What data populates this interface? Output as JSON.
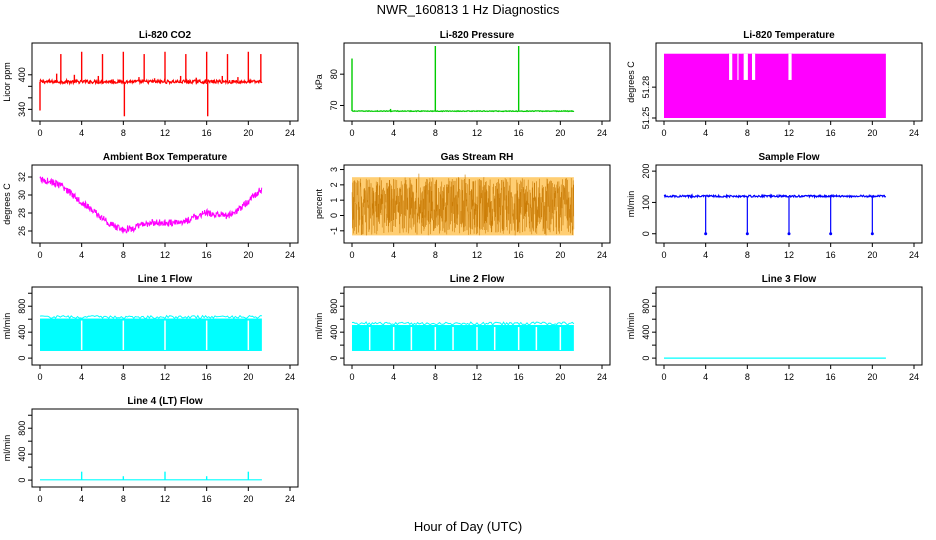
{
  "figure": {
    "title": "NWR_160813  1 Hz Diagnostics",
    "xlabel": "Hour of Day (UTC)"
  },
  "chart_data": [
    {
      "type": "line",
      "title": "Li-820 CO2",
      "ylabel": "Licor ppm",
      "color": "#ff0000",
      "xlim": [
        0,
        24
      ],
      "ylim": [
        325,
        450
      ],
      "xticks": [
        0,
        4,
        8,
        12,
        16,
        20,
        24
      ],
      "yticks": [
        340,
        360,
        380,
        400
      ],
      "yticklabels": [
        "340",
        "",
        "",
        "400"
      ],
      "base": 388,
      "noise": 3,
      "t_end": 21.3,
      "spikes": [
        [
          0.0,
          338
        ],
        [
          1.6,
          402
        ],
        [
          2.0,
          436
        ],
        [
          3.3,
          400
        ],
        [
          4.0,
          440
        ],
        [
          5.6,
          398
        ],
        [
          6.0,
          436
        ],
        [
          7.0,
          392
        ],
        [
          8.0,
          440
        ],
        [
          8.1,
          328
        ],
        [
          9.5,
          396
        ],
        [
          10.0,
          436
        ],
        [
          11.0,
          394
        ],
        [
          12.0,
          440
        ],
        [
          13.5,
          398
        ],
        [
          14.0,
          436
        ],
        [
          15.0,
          395
        ],
        [
          16.0,
          440
        ],
        [
          16.1,
          328
        ],
        [
          17.5,
          398
        ],
        [
          18.0,
          436
        ],
        [
          19.0,
          396
        ],
        [
          20.0,
          440
        ],
        [
          21.2,
          436
        ]
      ]
    },
    {
      "type": "line",
      "title": "Li-820 Pressure",
      "ylabel": "kPa",
      "color": "#00cc00",
      "xlim": [
        0,
        24
      ],
      "ylim": [
        66,
        89
      ],
      "xticks": [
        0,
        4,
        8,
        12,
        16,
        20,
        24
      ],
      "yticks": [
        70,
        80
      ],
      "yticklabels": [
        "70",
        "80"
      ],
      "base": 68.2,
      "noise": 0.12,
      "t_end": 21.3,
      "spikes": [
        [
          0.0,
          85
        ],
        [
          3.7,
          68.9
        ],
        [
          8.0,
          89
        ],
        [
          16.0,
          89
        ]
      ]
    },
    {
      "type": "line",
      "title": "Li-820 Temperature",
      "ylabel": "degrees C",
      "color": "#ff00ff",
      "xlim": [
        0,
        24
      ],
      "ylim": [
        51.25,
        51.32
      ],
      "xticks": [
        0,
        4,
        8,
        12,
        16,
        20,
        24
      ],
      "yticks": [
        51.25,
        51.28
      ],
      "yticklabels": [
        "51.25",
        "51.28"
      ],
      "levels": [
        51.25,
        51.3125
      ],
      "mid_level": 51.287,
      "t_end": 21.3,
      "dropouts": [
        [
          6.2,
          6.6
        ],
        [
          7.0,
          7.2
        ],
        [
          7.6,
          8.1
        ],
        [
          8.4,
          8.8
        ],
        [
          11.9,
          12.3
        ]
      ]
    },
    {
      "type": "line",
      "title": "Ambient Box Temperature",
      "ylabel": "degrees C",
      "color": "#ff00ff",
      "xlim": [
        0,
        24
      ],
      "ylim": [
        25,
        33
      ],
      "xticks": [
        0,
        4,
        8,
        12,
        16,
        20,
        24
      ],
      "yticks": [
        26,
        28,
        30,
        32
      ],
      "yticklabels": [
        "26",
        "28",
        "30",
        "32"
      ],
      "band": 0.8,
      "t_end": 21.3,
      "x": [
        0,
        1,
        2,
        3,
        4,
        5,
        6,
        7,
        8,
        9,
        10,
        11,
        12,
        13,
        14,
        15,
        16,
        17,
        18,
        19,
        20,
        21,
        21.3
      ],
      "y": [
        31.7,
        31.5,
        31.0,
        30.2,
        29.2,
        28.3,
        27.4,
        26.6,
        26.1,
        26.3,
        26.8,
        26.9,
        26.9,
        26.9,
        27.1,
        27.6,
        28.0,
        27.8,
        27.7,
        28.3,
        29.3,
        30.4,
        30.6
      ]
    },
    {
      "type": "scatter",
      "title": "Gas Stream RH",
      "ylabel": "percent",
      "color": "#ffa500",
      "xlim": [
        0,
        24
      ],
      "ylim": [
        -1.6,
        3.1
      ],
      "xticks": [
        0,
        4,
        8,
        12,
        16,
        20,
        24
      ],
      "yticks": [
        -1,
        0,
        1,
        2,
        3
      ],
      "yticklabels": [
        "-1",
        "0",
        "1",
        "2",
        "3"
      ],
      "band_low": -1.3,
      "band_high": 2.5,
      "t_end": 21.3
    },
    {
      "type": "line",
      "title": "Sample Flow",
      "ylabel": "ml/min",
      "color": "#0000ff",
      "xlim": [
        0,
        24
      ],
      "ylim": [
        -20,
        210
      ],
      "xticks": [
        0,
        4,
        8,
        12,
        16,
        20,
        24
      ],
      "yticks": [
        0,
        100,
        200
      ],
      "yticklabels": [
        "0",
        "100",
        "200"
      ],
      "base": 120,
      "noise": 3,
      "t_end": 21.3,
      "dips": [
        4,
        8,
        12,
        16,
        20
      ],
      "dip_value": 0
    },
    {
      "type": "area",
      "title": "Line 1 Flow",
      "ylabel": "ml/min",
      "color": "#00ffff",
      "xlim": [
        0,
        24
      ],
      "ylim": [
        -60,
        1050
      ],
      "xticks": [
        0,
        4,
        8,
        12,
        16,
        20,
        24
      ],
      "yticks": [
        0,
        200,
        400,
        600,
        800,
        1000
      ],
      "yticklabels": [
        "0",
        "",
        "400",
        "",
        "800",
        ""
      ],
      "low": 110,
      "high": 610,
      "t_end": 21.3,
      "gaps": [
        4.0,
        8.0,
        12.0,
        16.0,
        20.0
      ]
    },
    {
      "type": "area",
      "title": "Line 2 Flow",
      "ylabel": "ml/min",
      "color": "#00ffff",
      "xlim": [
        0,
        24
      ],
      "ylim": [
        -60,
        1050
      ],
      "xticks": [
        0,
        4,
        8,
        12,
        16,
        20,
        24
      ],
      "yticks": [
        0,
        200,
        400,
        600,
        800,
        1000
      ],
      "yticklabels": [
        "0",
        "",
        "400",
        "",
        "800",
        ""
      ],
      "low": 110,
      "high": 510,
      "t_end": 21.3,
      "gaps": [
        1.7,
        4.0,
        5.7,
        8.0,
        9.7,
        12.0,
        13.7,
        16.0,
        17.7,
        20.0
      ]
    },
    {
      "type": "line",
      "title": "Line 3 Flow",
      "ylabel": "ml/min",
      "color": "#00ffff",
      "xlim": [
        0,
        24
      ],
      "ylim": [
        -60,
        1050
      ],
      "xticks": [
        0,
        4,
        8,
        12,
        16,
        20,
        24
      ],
      "yticks": [
        0,
        200,
        400,
        600,
        800,
        1000
      ],
      "yticklabels": [
        "0",
        "",
        "400",
        "",
        "800",
        ""
      ],
      "base": 0,
      "noise": 0,
      "t_end": 21.3,
      "spikes": []
    },
    {
      "type": "line",
      "title": "Line 4 (LT) Flow",
      "ylabel": "ml/min",
      "color": "#00ffff",
      "xlim": [
        0,
        24
      ],
      "ylim": [
        -60,
        1050
      ],
      "xticks": [
        0,
        4,
        8,
        12,
        16,
        20,
        24
      ],
      "yticks": [
        0,
        200,
        400,
        600,
        800,
        1000
      ],
      "yticklabels": [
        "0",
        "",
        "400",
        "",
        "800",
        ""
      ],
      "base": 5,
      "noise": 0,
      "t_end": 21.3,
      "spikes": [
        [
          4.0,
          130
        ],
        [
          8.0,
          60
        ],
        [
          12.0,
          130
        ],
        [
          16.0,
          60
        ],
        [
          20.0,
          130
        ]
      ]
    }
  ]
}
